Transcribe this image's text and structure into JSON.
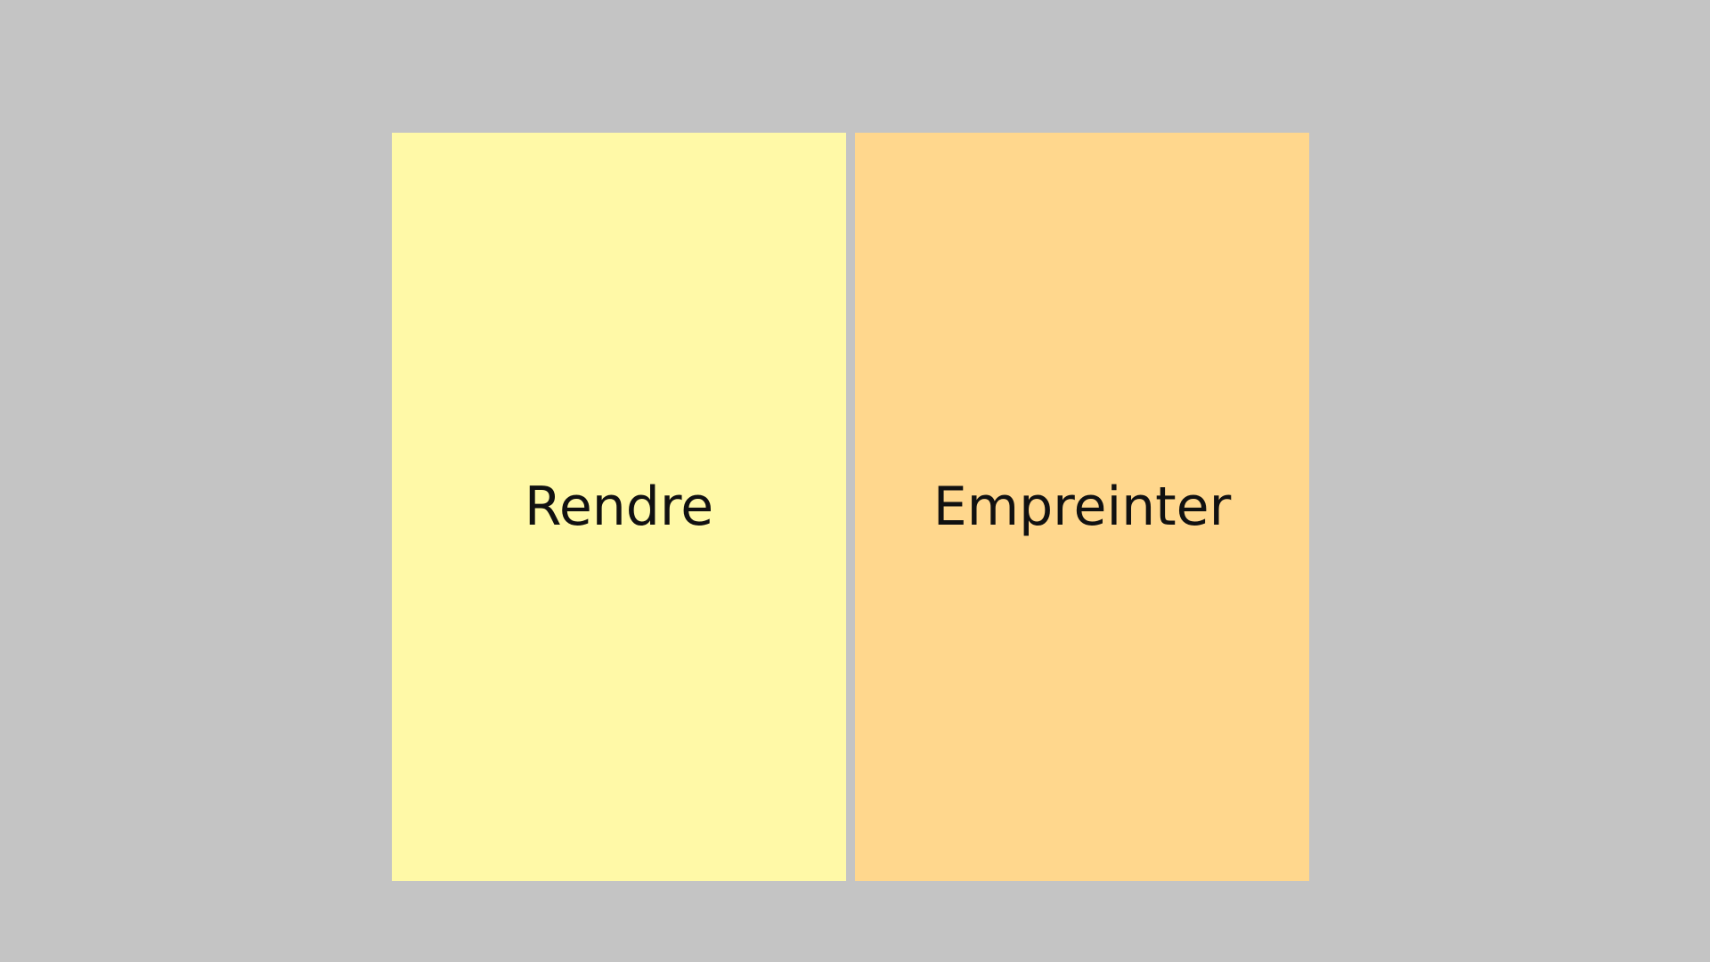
{
  "background_color": "#c4c4c4",
  "cards": [
    {
      "label": "Rendre",
      "color": "#fff9a7"
    },
    {
      "label": "Empreinter",
      "color": "#ffd78d"
    }
  ]
}
